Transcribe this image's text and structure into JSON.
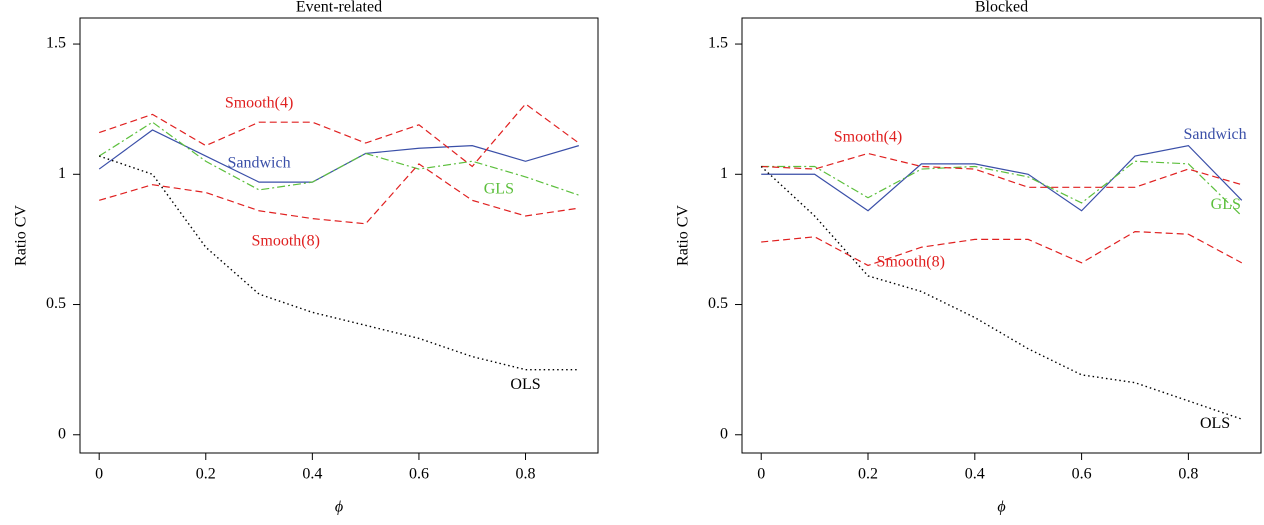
{
  "chart_data": [
    {
      "type": "line",
      "title": "Event-related",
      "xlabel": "ϕ",
      "ylabel": "Ratio CV",
      "x": [
        0,
        0.1,
        0.2,
        0.3,
        0.4,
        0.5,
        0.6,
        0.7,
        0.8,
        0.9
      ],
      "xlim": [
        -0.036,
        0.936
      ],
      "ylim": [
        -0.07,
        1.6
      ],
      "xticks": [
        0,
        0.2,
        0.4,
        0.6,
        0.8
      ],
      "yticks": [
        0,
        0.5,
        1,
        1.5
      ],
      "series": [
        {
          "name": "Sandwich",
          "color": "#3a4fa8",
          "values": [
            1.02,
            1.17,
            1.07,
            0.97,
            0.97,
            1.08,
            1.1,
            1.11,
            1.05,
            1.11
          ]
        },
        {
          "name": "GLS",
          "color": "#5cbf3c",
          "values": [
            1.07,
            1.2,
            1.05,
            0.94,
            0.97,
            1.08,
            1.02,
            1.05,
            0.99,
            0.92
          ]
        },
        {
          "name": "Smooth(4)",
          "color": "#e02020",
          "values": [
            1.16,
            1.23,
            1.11,
            1.2,
            1.2,
            1.12,
            1.19,
            1.03,
            1.27,
            1.12
          ]
        },
        {
          "name": "Smooth(8)",
          "color": "#e02020",
          "values": [
            0.9,
            0.96,
            0.93,
            0.86,
            0.83,
            0.81,
            1.04,
            0.9,
            0.84,
            0.87
          ]
        },
        {
          "name": "OLS",
          "color": "#000000",
          "values": [
            1.07,
            1.0,
            0.72,
            0.54,
            0.47,
            0.42,
            0.37,
            0.3,
            0.25,
            0.25
          ]
        }
      ]
    },
    {
      "type": "line",
      "title": "Blocked",
      "xlabel": "ϕ",
      "ylabel": "Ratio CV",
      "x": [
        0,
        0.1,
        0.2,
        0.3,
        0.4,
        0.5,
        0.6,
        0.7,
        0.8,
        0.9
      ],
      "xlim": [
        -0.036,
        0.936
      ],
      "ylim": [
        -0.07,
        1.6
      ],
      "xticks": [
        0,
        0.2,
        0.4,
        0.6,
        0.8
      ],
      "yticks": [
        0,
        0.5,
        1,
        1.5
      ],
      "series": [
        {
          "name": "Sandwich",
          "color": "#3a4fa8",
          "values": [
            1.0,
            1.0,
            0.86,
            1.04,
            1.04,
            1.0,
            0.86,
            1.07,
            1.11,
            0.9
          ]
        },
        {
          "name": "GLS",
          "color": "#5cbf3c",
          "values": [
            1.03,
            1.03,
            0.91,
            1.02,
            1.03,
            0.99,
            0.89,
            1.05,
            1.04,
            0.84
          ]
        },
        {
          "name": "Smooth(4)",
          "color": "#e02020",
          "values": [
            1.03,
            1.02,
            1.08,
            1.03,
            1.02,
            0.95,
            0.95,
            0.95,
            1.02,
            0.96
          ]
        },
        {
          "name": "Smooth(8)",
          "color": "#e02020",
          "values": [
            0.74,
            0.76,
            0.65,
            0.72,
            0.75,
            0.75,
            0.66,
            0.78,
            0.77,
            0.66
          ]
        },
        {
          "name": "OLS",
          "color": "#000000",
          "values": [
            1.03,
            0.84,
            0.61,
            0.55,
            0.45,
            0.33,
            0.23,
            0.2,
            0.13,
            0.06
          ]
        }
      ]
    }
  ]
}
